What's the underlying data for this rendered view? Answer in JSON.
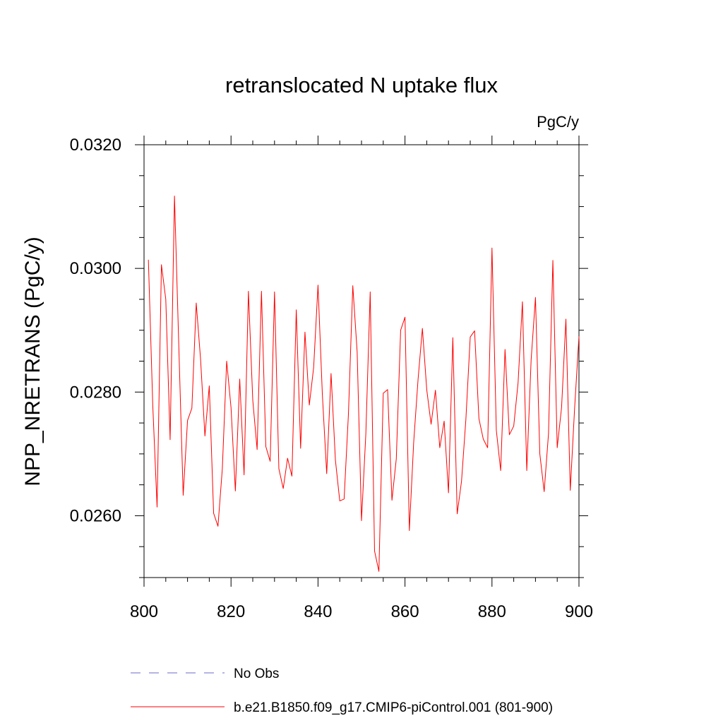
{
  "chart_data": {
    "type": "line",
    "title": "retranslocated N uptake flux",
    "units_label": "PgC/y",
    "ylabel": "NPP_NRETRANS  (PgC/y)",
    "xlabel": "",
    "xlim": [
      800,
      900
    ],
    "ylim": [
      0.025,
      0.032
    ],
    "x_ticks": [
      800,
      820,
      840,
      860,
      880,
      900
    ],
    "x_tick_labels": [
      "800",
      "820",
      "840",
      "860",
      "880",
      "900"
    ],
    "y_ticks": [
      0.026,
      0.028,
      0.03,
      0.032
    ],
    "y_tick_labels": [
      "0.0260",
      "0.0280",
      "0.0300",
      "0.0320"
    ],
    "x_minor_step": 5,
    "y_minor_step": 0.0005,
    "grid": false,
    "legend_position": "bottom",
    "series": [
      {
        "name": "b.e21.B1850.f09_g17.CMIP6-piControl.001 (801-900)",
        "color": "#ff0000",
        "style": "solid",
        "x": [
          801,
          802,
          803,
          804,
          805,
          806,
          807,
          808,
          809,
          810,
          811,
          812,
          813,
          814,
          815,
          816,
          817,
          818,
          819,
          820,
          821,
          822,
          823,
          824,
          825,
          826,
          827,
          828,
          829,
          830,
          831,
          832,
          833,
          834,
          835,
          836,
          837,
          838,
          839,
          840,
          841,
          842,
          843,
          844,
          845,
          846,
          847,
          848,
          849,
          850,
          851,
          852,
          853,
          854,
          855,
          856,
          857,
          858,
          859,
          860,
          861,
          862,
          863,
          864,
          865,
          866,
          867,
          868,
          869,
          870,
          871,
          872,
          873,
          874,
          875,
          876,
          877,
          878,
          879,
          880,
          881,
          882,
          883,
          884,
          885,
          886,
          887,
          888,
          889,
          890,
          891,
          892,
          893,
          894,
          895,
          896,
          897,
          898,
          899,
          900
        ],
        "values": [
          0.03014,
          0.0278,
          0.02614,
          0.03006,
          0.0295,
          0.02723,
          0.03117,
          0.02873,
          0.02633,
          0.02754,
          0.02774,
          0.02944,
          0.02853,
          0.02729,
          0.0281,
          0.02604,
          0.02583,
          0.02676,
          0.0285,
          0.02775,
          0.0264,
          0.02821,
          0.02666,
          0.02963,
          0.02787,
          0.02707,
          0.02963,
          0.02712,
          0.02688,
          0.02962,
          0.02676,
          0.02644,
          0.02693,
          0.02664,
          0.02933,
          0.02709,
          0.02897,
          0.02779,
          0.0284,
          0.02973,
          0.02796,
          0.02668,
          0.0283,
          0.0269,
          0.02624,
          0.02627,
          0.02765,
          0.02972,
          0.02865,
          0.02592,
          0.02733,
          0.02962,
          0.02543,
          0.0251,
          0.02798,
          0.02804,
          0.02625,
          0.02692,
          0.029,
          0.02921,
          0.02576,
          0.02719,
          0.0282,
          0.02903,
          0.02804,
          0.02748,
          0.02803,
          0.0271,
          0.02753,
          0.02637,
          0.02888,
          0.02603,
          0.02656,
          0.02756,
          0.02889,
          0.02899,
          0.02757,
          0.02724,
          0.0271,
          0.03033,
          0.02738,
          0.02673,
          0.02869,
          0.02731,
          0.02745,
          0.02815,
          0.02946,
          0.02673,
          0.02852,
          0.02953,
          0.027,
          0.02639,
          0.02733,
          0.03013,
          0.0271,
          0.02775,
          0.02918,
          0.02641,
          0.02774,
          0.0289
        ]
      },
      {
        "name": "No Obs",
        "color": "#6a6ac8",
        "style": "dashed",
        "x": [],
        "values": []
      }
    ]
  }
}
